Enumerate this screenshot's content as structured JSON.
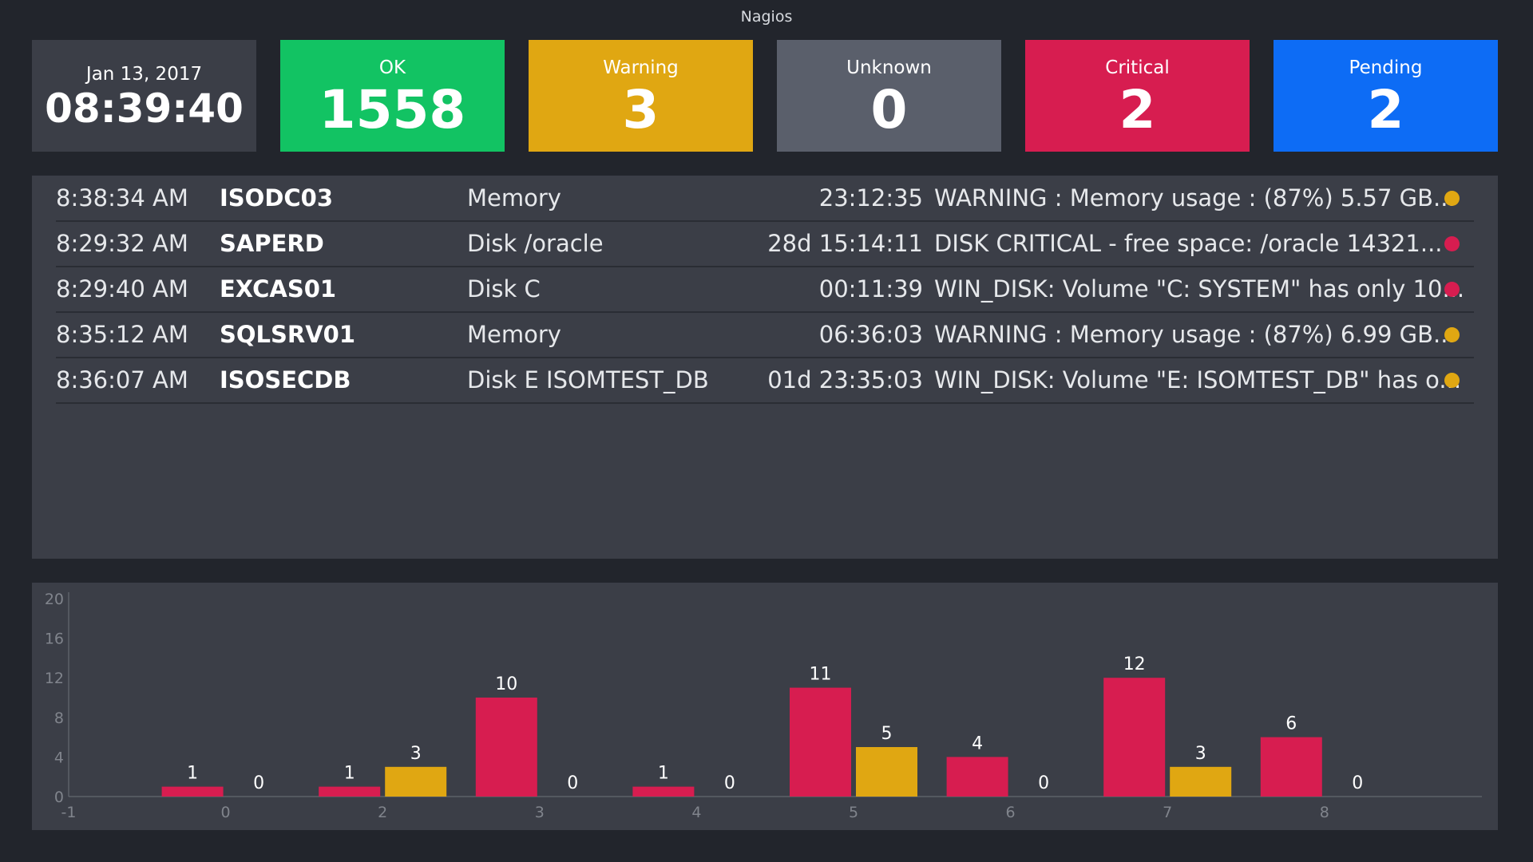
{
  "app": {
    "title": "Nagios"
  },
  "clock": {
    "date": "Jan 13, 2017",
    "time": "08:39:40"
  },
  "status_tiles": [
    {
      "label": "OK",
      "count": "1558",
      "color": "#12c363"
    },
    {
      "label": "Warning",
      "count": "3",
      "color": "#e0a712"
    },
    {
      "label": "Unknown",
      "count": "0",
      "color": "#5a5f6b"
    },
    {
      "label": "Critical",
      "count": "2",
      "color": "#d71d50"
    },
    {
      "label": "Pending",
      "count": "2",
      "color": "#0d6cf5"
    }
  ],
  "alerts": [
    {
      "time": "8:38:34 AM",
      "host": "ISODC03",
      "service": "Memory",
      "duration": "23:12:35",
      "message": "WARNING : Memory usage : (87%) 5.57 GB...",
      "status": "warning",
      "color": "#e0a712"
    },
    {
      "time": "8:29:32 AM",
      "host": "SAPERD",
      "service": "Disk /oracle",
      "duration": "28d 15:14:11",
      "message": "DISK CRITICAL - free space: /oracle 14321...",
      "status": "critical",
      "color": "#d71d50"
    },
    {
      "time": "8:29:40 AM",
      "host": "EXCAS01",
      "service": "Disk C",
      "duration": "00:11:39",
      "message": "WIN_DISK: Volume \"C: SYSTEM\" has only 10...",
      "status": "critical",
      "color": "#d71d50"
    },
    {
      "time": "8:35:12 AM",
      "host": "SQLSRV01",
      "service": "Memory",
      "duration": "06:36:03",
      "message": "WARNING : Memory usage : (87%) 6.99 GB...",
      "status": "warning",
      "color": "#e0a712"
    },
    {
      "time": "8:36:07 AM",
      "host": "ISOSECDB",
      "service": "Disk E ISOMTEST_DB",
      "duration": "01d 23:35:03",
      "message": "WIN_DISK: Volume \"E: ISOMTEST_DB\" has o...",
      "status": "warning",
      "color": "#e0a712"
    }
  ],
  "chart_data": {
    "type": "bar",
    "x_ticks": [
      "-1",
      "0",
      "2",
      "3",
      "4",
      "5",
      "6",
      "7",
      "8"
    ],
    "y_ticks": [
      "0",
      "4",
      "8",
      "12",
      "16",
      "20"
    ],
    "ylim": [
      0,
      20
    ],
    "grid": false,
    "series": [
      {
        "color": "#d71d50",
        "values": [
          1,
          1,
          10,
          1,
          11,
          4,
          12,
          6
        ]
      },
      {
        "color": "#e0a712",
        "values": [
          0,
          3,
          0,
          0,
          5,
          0,
          3,
          0
        ]
      }
    ]
  }
}
